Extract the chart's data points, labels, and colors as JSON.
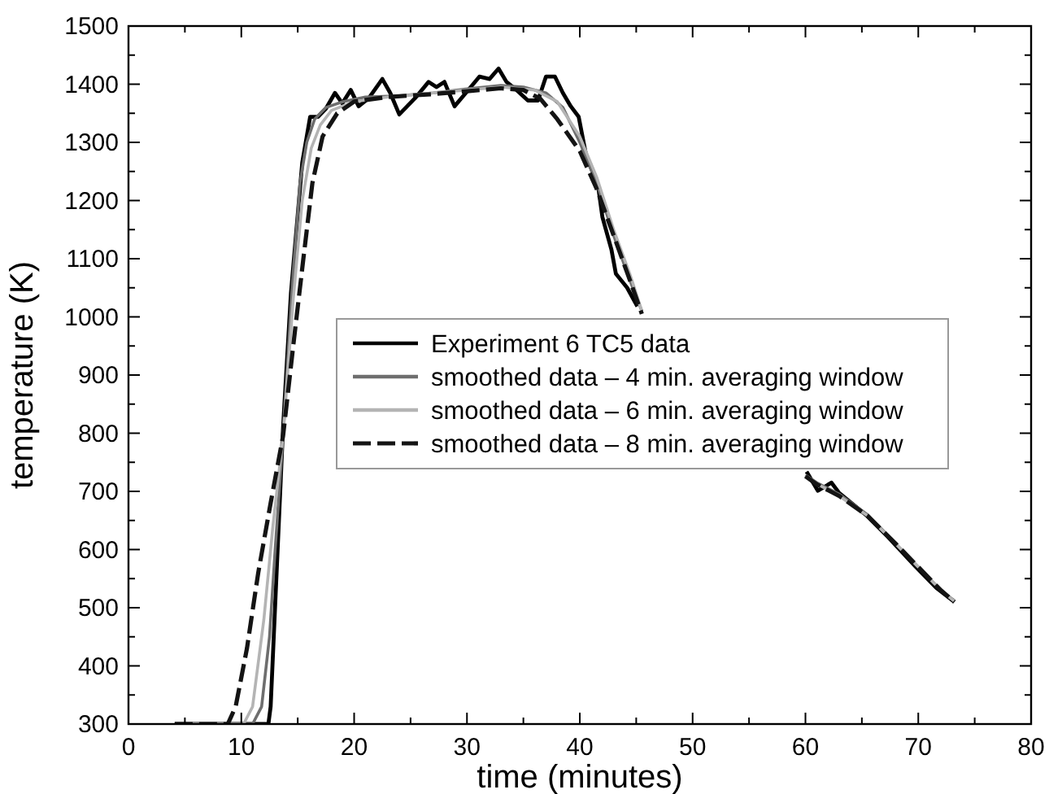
{
  "chart_data": {
    "type": "line",
    "xlabel": "time (minutes)",
    "ylabel": "temperature (K)",
    "xlim": [
      0,
      80
    ],
    "ylim": [
      300,
      1500
    ],
    "xticks": [
      0,
      {
        "value": 5,
        "label": null
      },
      10,
      {
        "value": 15,
        "label": null
      },
      20,
      {
        "value": 25,
        "label": null
      },
      30,
      {
        "value": 35,
        "label": null
      },
      40,
      {
        "value": 45,
        "label": null
      },
      50,
      {
        "value": 55,
        "label": null
      },
      60,
      {
        "value": 65,
        "label": null
      },
      70,
      {
        "value": 75,
        "label": null
      },
      80
    ],
    "yticks": [
      300,
      {
        "value": 350,
        "label": null
      },
      400,
      {
        "value": 450,
        "label": null
      },
      500,
      {
        "value": 550,
        "label": null
      },
      600,
      {
        "value": 650,
        "label": null
      },
      700,
      {
        "value": 750,
        "label": null
      },
      800,
      {
        "value": 850,
        "label": null
      },
      900,
      {
        "value": 950,
        "label": null
      },
      1000,
      {
        "value": 1050,
        "label": null
      },
      1100,
      {
        "value": 1150,
        "label": null
      },
      1200,
      {
        "value": 1250,
        "label": null
      },
      1300,
      {
        "value": 1350,
        "label": null
      },
      1400,
      {
        "value": 1450,
        "label": null
      },
      1500
    ],
    "grid": false,
    "legend": "center right",
    "marker": "none",
    "series": [
      {
        "name": "Experiment 6 TC5 data",
        "color": "#000000",
        "line_style": "solid",
        "x": [
          4.1,
          12.4,
          12.6,
          13.7,
          14.4,
          15.4,
          16.1,
          16.8,
          17.5,
          18.3,
          18.95,
          19.7,
          20.4,
          21.3,
          22.5,
          23.2,
          24.0,
          24.7,
          25.4,
          26.6,
          27.3,
          28.0,
          28.9,
          29.9,
          31.1,
          32.0,
          32.8,
          33.5,
          34.4,
          35.4,
          36.3,
          37.0,
          37.8,
          38.5,
          39.2,
          39.9,
          40.6,
          41.6,
          42.0,
          42.8,
          43.2,
          44.2,
          45.1,
          50,
          60.1,
          61.1,
          62.3,
          63.0,
          65.4,
          67.3,
          69.7,
          71.6,
          73.2
        ],
        "values": [
          300,
          300,
          330,
          810,
          1041,
          1265,
          1344,
          1344,
          1358,
          1385,
          1367,
          1390,
          1362,
          1376,
          1409,
          1385,
          1348,
          1362,
          1376,
          1404,
          1395,
          1404,
          1362,
          1385,
          1413,
          1409,
          1427,
          1404,
          1390,
          1372,
          1372,
          1413,
          1413,
          1385,
          1362,
          1344,
          1274,
          1228,
          1172,
          1116,
          1074,
          1050,
          1018,
          null,
          734,
          701,
          715,
          697,
          659,
          622,
          572,
          534,
          510
        ]
      },
      {
        "name": "smoothed data – 4 min. averaging window",
        "color": "#6e6e6e",
        "line_style": "solid",
        "x": [
          4.1,
          11.0,
          11.8,
          12.5,
          13.0,
          13.7,
          14.5,
          15.2,
          15.8,
          16.5,
          17.5,
          19,
          21,
          24,
          27,
          30,
          33,
          35,
          37,
          38.5,
          40,
          41.5,
          43,
          44.5,
          45.5,
          50,
          60,
          61,
          63,
          65.5,
          68,
          70,
          72,
          73.2
        ],
        "values": [
          300,
          300,
          330,
          450,
          600,
          795,
          1050,
          1230,
          1300,
          1340,
          1360,
          1370,
          1378,
          1380,
          1385,
          1392,
          1398,
          1395,
          1385,
          1360,
          1300,
          1230,
          1140,
          1060,
          1010,
          null,
          728,
          715,
          695,
          660,
          610,
          570,
          530,
          512
        ]
      },
      {
        "name": "smoothed data – 6 min. averaging window",
        "color": "#b4b4b4",
        "line_style": "solid",
        "x": [
          4.1,
          10.2,
          11.0,
          12.0,
          12.8,
          13.7,
          14.6,
          15.4,
          16.2,
          17,
          18,
          20,
          23,
          27,
          30,
          33,
          36,
          38,
          40,
          41.5,
          43,
          44.5,
          45.5,
          50,
          60,
          61,
          63,
          65.5,
          68,
          70,
          72,
          73.2
        ],
        "values": [
          300,
          300,
          330,
          480,
          640,
          795,
          1030,
          1200,
          1290,
          1330,
          1355,
          1370,
          1378,
          1385,
          1390,
          1395,
          1390,
          1370,
          1310,
          1240,
          1150,
          1070,
          1010,
          null,
          727,
          713,
          692,
          658,
          610,
          570,
          530,
          511
        ]
      },
      {
        "name": "smoothed data – 8 min. averaging window",
        "color": "#141414",
        "line_style": "dashed",
        "x": [
          4.1,
          8.8,
          9.5,
          10.5,
          11.5,
          12.6,
          13.7,
          14.6,
          15.5,
          16.3,
          17.2,
          18.5,
          20,
          23,
          27,
          30,
          33,
          35,
          36.5,
          38,
          40,
          41.5,
          43,
          44.5,
          45.5,
          50,
          60,
          61,
          63,
          65.5,
          68,
          70,
          72,
          73.2
        ],
        "values": [
          300,
          300,
          330,
          430,
          560,
          680,
          795,
          950,
          1100,
          1230,
          1310,
          1350,
          1370,
          1378,
          1383,
          1388,
          1393,
          1390,
          1375,
          1340,
          1285,
          1220,
          1140,
          1060,
          1005,
          null,
          726,
          712,
          692,
          658,
          610,
          570,
          530,
          510
        ]
      }
    ]
  }
}
